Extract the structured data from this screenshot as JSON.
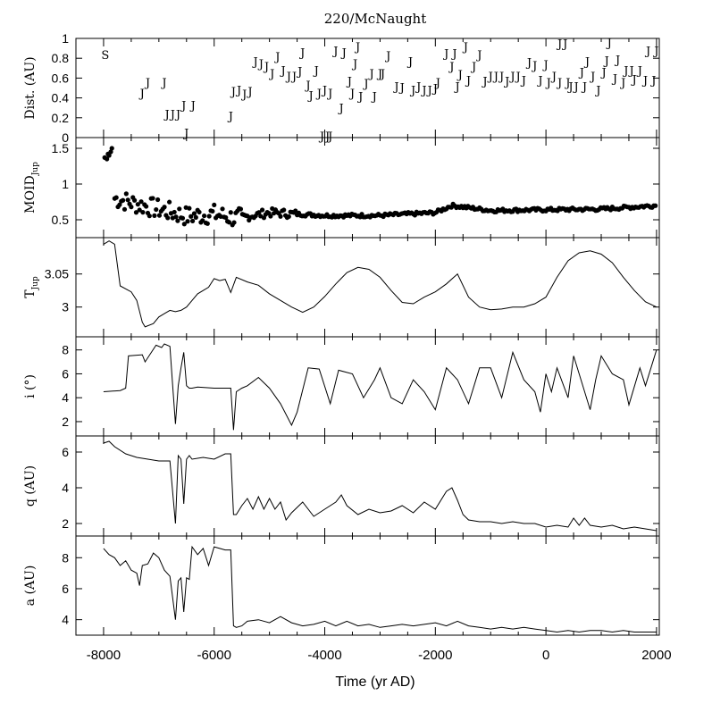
{
  "title": "220/McNaught",
  "xlabel": "Time (yr AD)",
  "x_ticks": [
    -8000,
    -6000,
    -4000,
    -2000,
    0,
    2000
  ],
  "xlim": [
    -8500,
    2050
  ],
  "chart_data": [
    {
      "type": "scatter",
      "ylabel": "Dist. (AU)",
      "ylim": [
        0,
        1
      ],
      "y_ticks": [
        "0",
        "0.2",
        "0.4",
        "0.6",
        "0.8",
        "1"
      ],
      "marker_S": {
        "label": "S",
        "points": [
          [
            -7970,
            0.84
          ]
        ]
      },
      "marker_J": {
        "label": "J",
        "points": [
          [
            -7300,
            0.45
          ],
          [
            -7200,
            0.56
          ],
          [
            -6900,
            0.56
          ],
          [
            -6850,
            0.24
          ],
          [
            -6750,
            0.24
          ],
          [
            -6650,
            0.24
          ],
          [
            -6550,
            0.33
          ],
          [
            -6500,
            0.05
          ],
          [
            -6380,
            0.33
          ],
          [
            -5700,
            0.22
          ],
          [
            -5650,
            0.47
          ],
          [
            -5550,
            0.48
          ],
          [
            -5450,
            0.44
          ],
          [
            -5350,
            0.47
          ],
          [
            -5250,
            0.77
          ],
          [
            -5150,
            0.75
          ],
          [
            -5050,
            0.72
          ],
          [
            -4950,
            0.65
          ],
          [
            -4850,
            0.82
          ],
          [
            -4750,
            0.68
          ],
          [
            -4650,
            0.62
          ],
          [
            -4550,
            0.62
          ],
          [
            -4450,
            0.67
          ],
          [
            -4400,
            0.86
          ],
          [
            -4300,
            0.53
          ],
          [
            -4250,
            0.43
          ],
          [
            -4150,
            0.68
          ],
          [
            -4100,
            0.45
          ],
          [
            -4000,
            0.48
          ],
          [
            -4050,
            0.02
          ],
          [
            -3950,
            0.02
          ],
          [
            -3900,
            0.02
          ],
          [
            -3900,
            0.45
          ],
          [
            -3800,
            0.88
          ],
          [
            -3700,
            0.3
          ],
          [
            -3650,
            0.86
          ],
          [
            -3550,
            0.57
          ],
          [
            -3500,
            0.45
          ],
          [
            -3450,
            0.75
          ],
          [
            -3400,
            0.92
          ],
          [
            -3350,
            0.42
          ],
          [
            -3250,
            0.55
          ],
          [
            -3150,
            0.65
          ],
          [
            -3100,
            0.42
          ],
          [
            -3000,
            0.65
          ],
          [
            -2950,
            0.65
          ],
          [
            -2850,
            0.83
          ],
          [
            -2700,
            0.52
          ],
          [
            -2600,
            0.51
          ],
          [
            -2450,
            0.77
          ],
          [
            -2400,
            0.48
          ],
          [
            -2300,
            0.52
          ],
          [
            -2200,
            0.48
          ],
          [
            -2100,
            0.48
          ],
          [
            -2000,
            0.5
          ],
          [
            -1950,
            0.56
          ],
          [
            -1800,
            0.85
          ],
          [
            -1700,
            0.72
          ],
          [
            -1650,
            0.85
          ],
          [
            -1600,
            0.52
          ],
          [
            -1550,
            0.64
          ],
          [
            -1450,
            0.92
          ],
          [
            -1400,
            0.58
          ],
          [
            -1300,
            0.72
          ],
          [
            -1200,
            0.84
          ],
          [
            -1100,
            0.57
          ],
          [
            -1000,
            0.62
          ],
          [
            -900,
            0.62
          ],
          [
            -800,
            0.62
          ],
          [
            -700,
            0.57
          ],
          [
            -600,
            0.62
          ],
          [
            -500,
            0.62
          ],
          [
            -400,
            0.58
          ],
          [
            -300,
            0.76
          ],
          [
            -200,
            0.73
          ],
          [
            -100,
            0.58
          ],
          [
            0,
            0.74
          ],
          [
            50,
            0.56
          ],
          [
            150,
            0.62
          ],
          [
            250,
            0.95
          ],
          [
            250,
            0.56
          ],
          [
            350,
            0.95
          ],
          [
            400,
            0.56
          ],
          [
            450,
            0.52
          ],
          [
            550,
            0.52
          ],
          [
            650,
            0.66
          ],
          [
            700,
            0.52
          ],
          [
            750,
            0.77
          ],
          [
            850,
            0.62
          ],
          [
            950,
            0.48
          ],
          [
            1050,
            0.66
          ],
          [
            1100,
            0.78
          ],
          [
            1150,
            0.96
          ],
          [
            1250,
            0.6
          ],
          [
            1300,
            0.79
          ],
          [
            1400,
            0.56
          ],
          [
            1450,
            0.68
          ],
          [
            1550,
            0.68
          ],
          [
            1600,
            0.59
          ],
          [
            1700,
            0.68
          ],
          [
            1800,
            0.58
          ],
          [
            1850,
            0.88
          ],
          [
            1950,
            0.58
          ],
          [
            2000,
            0.88
          ]
        ]
      }
    },
    {
      "type": "scatter",
      "ylabel": "MOID_Jup",
      "ylim": [
        0.25,
        1.65
      ],
      "y_ticks": [
        "0.5",
        "1",
        "1.5"
      ],
      "marker": "filled-circle"
    },
    {
      "type": "line",
      "ylabel": "T_Jup",
      "ylim": [
        2.955,
        3.105
      ],
      "y_ticks": [
        "3",
        "3.05"
      ],
      "x": [
        -8000,
        -7900,
        -7800,
        -7700,
        -7500,
        -7400,
        -7300,
        -7250,
        -7100,
        -7000,
        -6900,
        -6800,
        -6700,
        -6600,
        -6500,
        -6400,
        -6300,
        -6200,
        -6100,
        -6000,
        -5900,
        -5800,
        -5700,
        -5600,
        -5400,
        -5200,
        -5000,
        -4800,
        -4600,
        -4400,
        -4200,
        -4000,
        -3800,
        -3600,
        -3400,
        -3200,
        -3000,
        -2800,
        -2600,
        -2400,
        -2200,
        -2000,
        -1800,
        -1600,
        -1400,
        -1200,
        -1000,
        -800,
        -600,
        -400,
        -200,
        0,
        200,
        400,
        600,
        800,
        1000,
        1200,
        1400,
        1600,
        1800,
        2000
      ],
      "y": [
        3.095,
        3.1,
        3.095,
        3.032,
        3.023,
        3.01,
        2.977,
        2.97,
        2.975,
        2.985,
        2.99,
        2.995,
        2.993,
        2.995,
        3.0,
        3.01,
        3.02,
        3.025,
        3.03,
        3.043,
        3.04,
        3.042,
        3.022,
        3.045,
        3.038,
        3.033,
        3.02,
        3.01,
        3.0,
        2.992,
        3.0,
        3.016,
        3.035,
        3.052,
        3.06,
        3.057,
        3.045,
        3.025,
        3.007,
        3.005,
        3.015,
        3.023,
        3.035,
        3.05,
        3.015,
        3.0,
        2.996,
        2.997,
        3.0,
        3.0,
        3.005,
        3.015,
        3.045,
        3.07,
        3.082,
        3.085,
        3.08,
        3.067,
        3.045,
        3.025,
        3.008,
        3.0
      ]
    },
    {
      "type": "line",
      "ylabel": "i (°)",
      "ylim": [
        0.8,
        9.1
      ],
      "y_ticks": [
        "2",
        "4",
        "6",
        "8"
      ],
      "x": [
        -8000,
        -7700,
        -7600,
        -7550,
        -7300,
        -7250,
        -7050,
        -6950,
        -6900,
        -6800,
        -6750,
        -6700,
        -6650,
        -6600,
        -6550,
        -6500,
        -6450,
        -6400,
        -6300,
        -6000,
        -5800,
        -5700,
        -5650,
        -5600,
        -5500,
        -5400,
        -5200,
        -5000,
        -4800,
        -4600,
        -4500,
        -4300,
        -4100,
        -3900,
        -3750,
        -3500,
        -3300,
        -3100,
        -3000,
        -2800,
        -2600,
        -2400,
        -2200,
        -2000,
        -1800,
        -1600,
        -1400,
        -1200,
        -1000,
        -800,
        -600,
        -400,
        -200,
        -100,
        0,
        100,
        200,
        400,
        500,
        600,
        800,
        900,
        1000,
        1200,
        1400,
        1500,
        1700,
        1800,
        2000
      ],
      "y": [
        4.5,
        4.6,
        4.8,
        7.5,
        7.6,
        7.0,
        8.4,
        8.2,
        8.5,
        8.3,
        5.0,
        1.8,
        5.0,
        6.5,
        7.8,
        5.0,
        4.8,
        4.8,
        4.9,
        4.8,
        4.8,
        4.8,
        1.3,
        4.5,
        4.8,
        5.0,
        5.7,
        4.8,
        3.5,
        1.7,
        2.8,
        6.5,
        6.4,
        3.5,
        6.3,
        6.0,
        4.0,
        5.5,
        6.5,
        4.0,
        3.5,
        5.5,
        4.5,
        3.0,
        6.5,
        5.5,
        3.5,
        6.5,
        6.5,
        4.0,
        7.8,
        5.5,
        4.5,
        2.8,
        6.0,
        4.5,
        6.5,
        4.0,
        7.5,
        6.0,
        3.0,
        5.5,
        7.5,
        6.0,
        5.5,
        3.4,
        6.5,
        5.0,
        8.0
      ]
    },
    {
      "type": "line",
      "ylabel": "q (AU)",
      "ylim": [
        1.3,
        6.9
      ],
      "y_ticks": [
        "2",
        "4",
        "6"
      ],
      "x": [
        -8000,
        -7900,
        -7800,
        -7600,
        -7400,
        -7200,
        -7000,
        -6800,
        -6700,
        -6650,
        -6600,
        -6550,
        -6500,
        -6450,
        -6400,
        -6200,
        -6000,
        -5800,
        -5700,
        -5650,
        -5600,
        -5500,
        -5400,
        -5300,
        -5200,
        -5100,
        -5000,
        -4900,
        -4800,
        -4700,
        -4600,
        -4400,
        -4200,
        -4000,
        -3800,
        -3700,
        -3600,
        -3400,
        -3200,
        -3000,
        -2800,
        -2600,
        -2400,
        -2200,
        -2000,
        -1800,
        -1700,
        -1600,
        -1500,
        -1400,
        -1200,
        -1000,
        -800,
        -600,
        -400,
        -200,
        0,
        200,
        400,
        500,
        600,
        700,
        800,
        1000,
        1200,
        1400,
        1600,
        1800,
        2000
      ],
      "y": [
        6.5,
        6.6,
        6.3,
        5.9,
        5.7,
        5.6,
        5.5,
        5.5,
        2.0,
        5.8,
        5.6,
        3.1,
        5.6,
        5.8,
        5.6,
        5.7,
        5.6,
        5.9,
        5.9,
        2.5,
        2.5,
        3.0,
        3.4,
        2.8,
        3.5,
        2.8,
        3.4,
        2.8,
        3.2,
        2.2,
        2.6,
        3.2,
        2.4,
        2.8,
        3.2,
        3.6,
        3.0,
        2.5,
        2.8,
        2.6,
        2.7,
        3.0,
        2.6,
        3.2,
        2.8,
        3.8,
        4.0,
        3.3,
        2.5,
        2.2,
        2.1,
        2.1,
        2.0,
        2.1,
        2.0,
        2.0,
        1.8,
        1.9,
        1.8,
        2.3,
        1.9,
        2.3,
        1.9,
        1.8,
        1.9,
        1.7,
        1.8,
        1.7,
        1.6
      ]
    },
    {
      "type": "line",
      "ylabel": "a (AU)",
      "ylim": [
        3.0,
        9.4
      ],
      "y_ticks": [
        "4",
        "6",
        "8"
      ],
      "x": [
        -8000,
        -7900,
        -7800,
        -7700,
        -7600,
        -7500,
        -7400,
        -7350,
        -7300,
        -7200,
        -7100,
        -7000,
        -6900,
        -6800,
        -6700,
        -6650,
        -6600,
        -6550,
        -6500,
        -6450,
        -6400,
        -6300,
        -6200,
        -6100,
        -6000,
        -5900,
        -5800,
        -5700,
        -5650,
        -5600,
        -5500,
        -5400,
        -5200,
        -5000,
        -4800,
        -4600,
        -4400,
        -4200,
        -4000,
        -3800,
        -3600,
        -3400,
        -3200,
        -3000,
        -2800,
        -2600,
        -2400,
        -2200,
        -2000,
        -1800,
        -1600,
        -1400,
        -1200,
        -1000,
        -800,
        -600,
        -400,
        -200,
        0,
        200,
        400,
        600,
        800,
        1000,
        1200,
        1400,
        1600,
        1800,
        2000
      ],
      "y": [
        8.6,
        8.2,
        8.0,
        7.5,
        7.8,
        7.2,
        7.0,
        6.2,
        7.5,
        7.6,
        8.3,
        8.0,
        7.2,
        6.8,
        4.0,
        6.5,
        6.7,
        4.5,
        6.7,
        6.6,
        8.7,
        8.2,
        8.6,
        7.5,
        8.7,
        8.6,
        8.5,
        8.5,
        3.6,
        3.5,
        3.6,
        3.9,
        4.0,
        3.8,
        4.2,
        3.8,
        3.6,
        3.7,
        3.9,
        3.6,
        3.9,
        3.6,
        3.7,
        3.5,
        3.6,
        3.7,
        3.6,
        3.7,
        3.8,
        3.6,
        3.9,
        3.6,
        3.5,
        3.4,
        3.5,
        3.4,
        3.5,
        3.4,
        3.3,
        3.2,
        3.3,
        3.2,
        3.3,
        3.3,
        3.2,
        3.3,
        3.2,
        3.2,
        3.2
      ]
    }
  ]
}
